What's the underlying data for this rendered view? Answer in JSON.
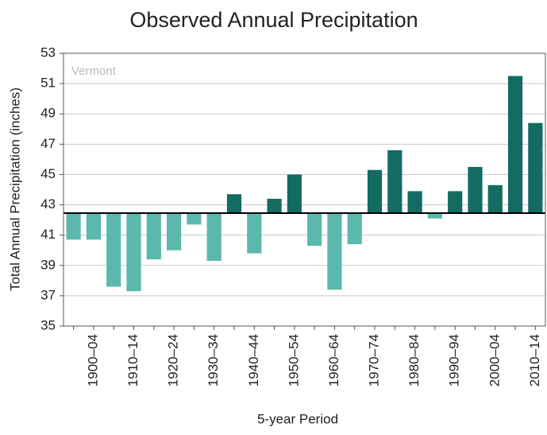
{
  "chart_data": {
    "type": "bar",
    "title": "Observed Annual Precipitation",
    "annotation": "Vermont",
    "x_label": "5-year Period",
    "y_label": "Total Annual Precipitation (inches)",
    "categories": [
      null,
      "1900–04",
      null,
      "1910–14",
      null,
      "1920–24",
      null,
      "1930–34",
      null,
      "1940–44",
      null,
      "1950–54",
      null,
      "1960–64",
      null,
      "1970–74",
      null,
      "1980–84",
      null,
      "1990–94",
      null,
      "2000–04",
      null,
      "2010–14"
    ],
    "values": [
      40.7,
      40.7,
      37.6,
      37.3,
      39.4,
      40.0,
      41.7,
      39.3,
      43.7,
      39.8,
      43.4,
      45.0,
      40.3,
      37.4,
      40.4,
      45.3,
      46.6,
      43.9,
      42.1,
      43.9,
      45.5,
      44.3,
      51.5,
      48.4
    ],
    "baseline": 42.45,
    "color_above": "#136b62",
    "color_below": "#5bb8ad",
    "ylim": [
      35,
      53
    ],
    "yticks": [
      35,
      37,
      39,
      41,
      43,
      45,
      47,
      49,
      51,
      53
    ],
    "grid": true
  }
}
